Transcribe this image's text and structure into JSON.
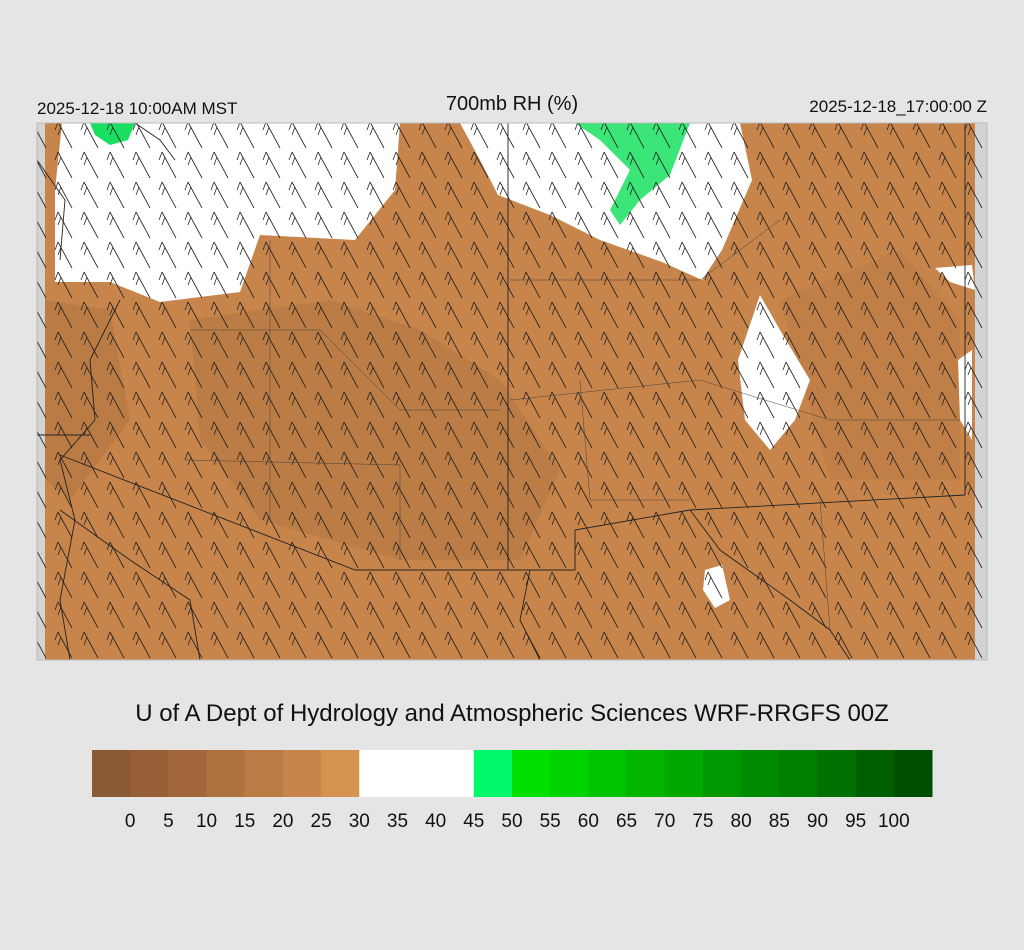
{
  "header": {
    "local_time": "2025-12-18 10:00AM MST",
    "title": "700mb RH (%)",
    "utc_time": "2025-12-18_17:00:00 Z"
  },
  "credit": "U of A Dept of Hydrology and Atmospheric Sciences WRF-RRGFS 00Z",
  "colorbar": {
    "levels": [
      0,
      5,
      10,
      15,
      20,
      25,
      30,
      35,
      40,
      45,
      50,
      55,
      60,
      65,
      70,
      75,
      80,
      85,
      90,
      95,
      100
    ],
    "colors": [
      "#8a5a34",
      "#965f36",
      "#a2683b",
      "#ae7240",
      "#bb7b45",
      "#c8854b",
      "#d59352",
      "#ffffff",
      "#ffffff",
      "#ffffff",
      "#00f86a",
      "#00e000",
      "#00d200",
      "#00c400",
      "#00b400",
      "#00a800",
      "#009800",
      "#008c00",
      "#007e00",
      "#007000",
      "#006000",
      "#004e00"
    ]
  }
}
